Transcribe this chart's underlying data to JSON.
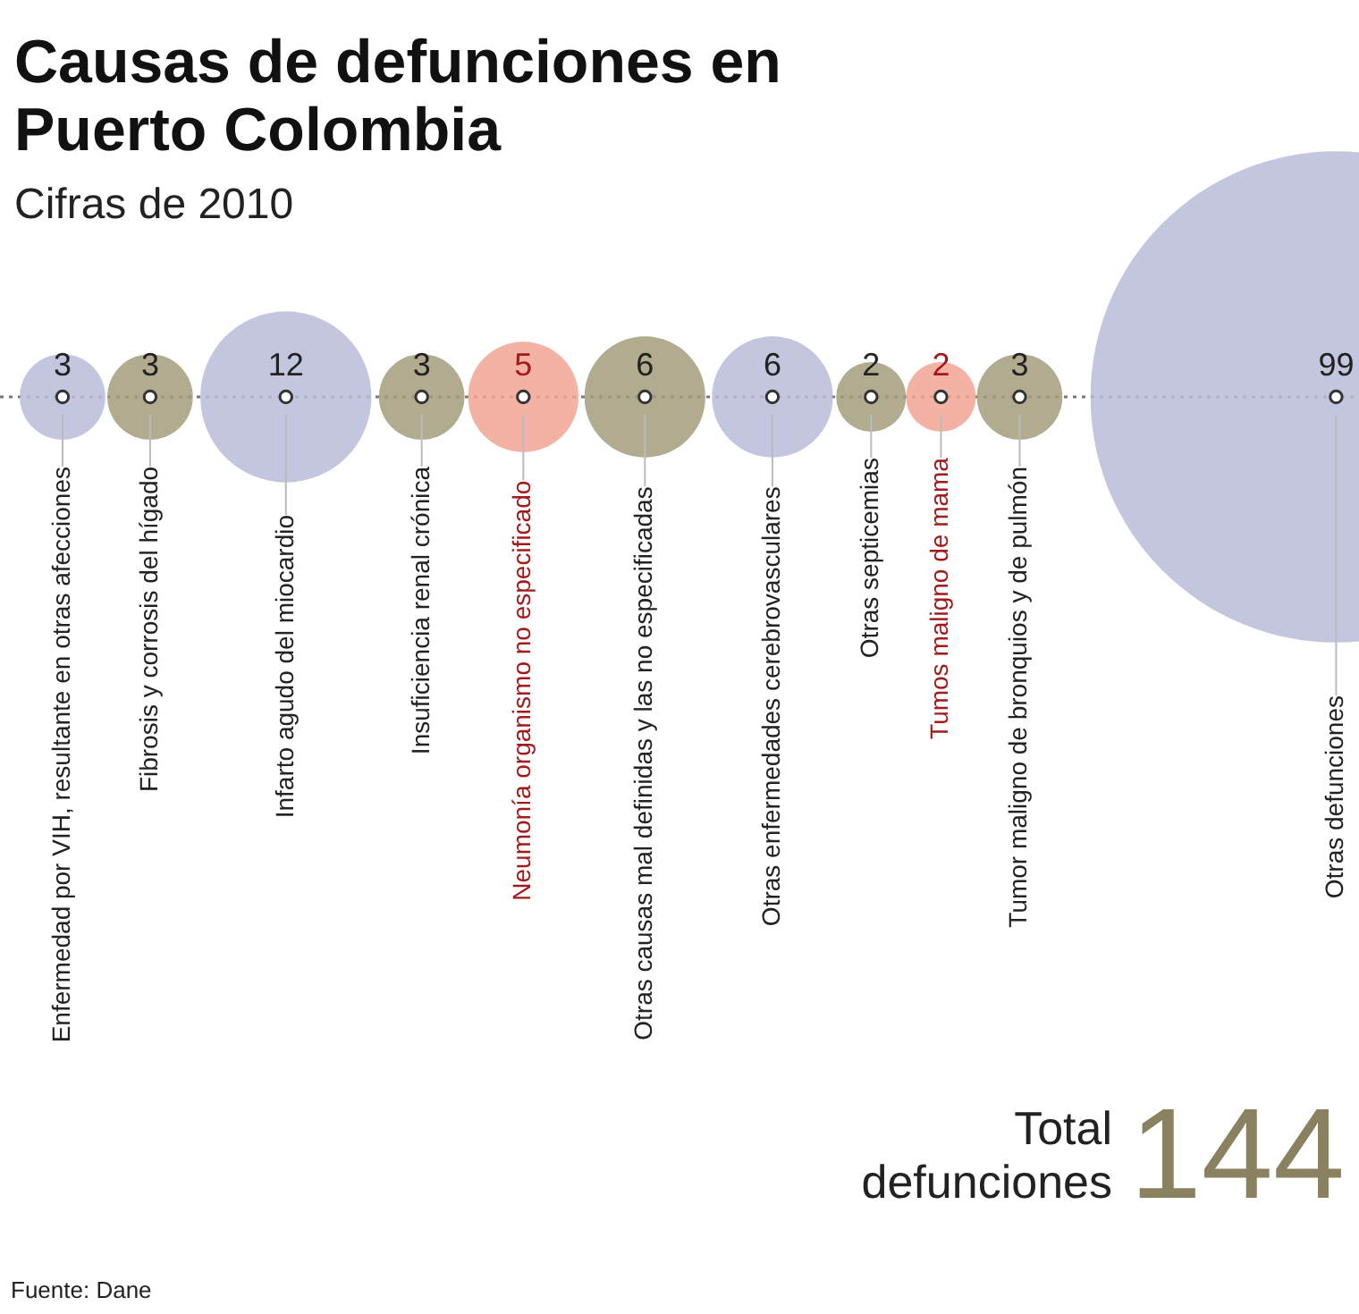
{
  "chart_data": {
    "type": "other",
    "title": "Causas de defunciones en Puerto Colombia",
    "subtitle": "Cifras de 2010",
    "categories": [
      "Enfermedad por VIH, resultante en otras afecciones",
      "Fibrosis y corrosis del hígado",
      "Infarto agudo del miocardio",
      "Insuficiencia renal crónica",
      "Neumonía organismo no especificado",
      "Otras causas mal definidas y las no especificadas",
      "Otras enfermedades cerebrovasculares",
      "Otras septicemias",
      "Tumos maligno de mama",
      "Tumor maligno de bronquios y de pulmón",
      "Otras defunciones"
    ],
    "values": [
      3,
      3,
      12,
      3,
      5,
      6,
      6,
      2,
      2,
      3,
      99
    ],
    "colors": [
      "#b8bcd8",
      "#a39d7c",
      "#b8bcd8",
      "#a39d7c",
      "#f2a594",
      "#a39d7c",
      "#b8bcd8",
      "#a39d7c",
      "#f2a594",
      "#a39d7c",
      "#b8bcd8"
    ],
    "data_labels": true,
    "annotations": [
      "Total defunciones",
      "144",
      "Fuente: Dane"
    ]
  }
}
